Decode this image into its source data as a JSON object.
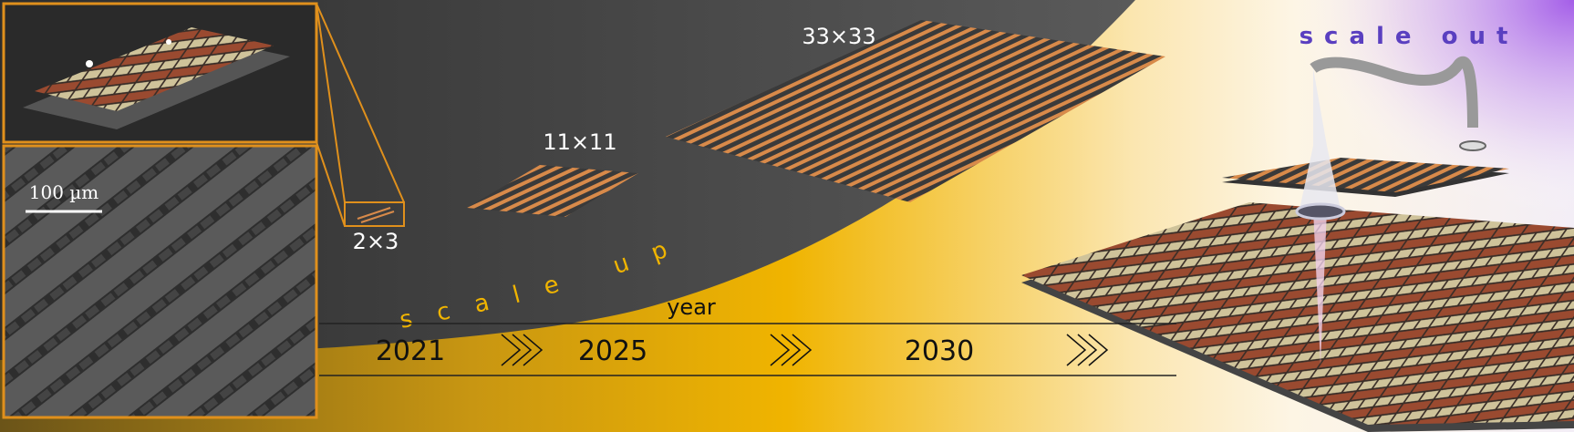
{
  "panels": {
    "scale_bar": "100 µm"
  },
  "arrays": [
    {
      "label": "2×3"
    },
    {
      "label": "11×11"
    },
    {
      "label": "33×33"
    }
  ],
  "scale_up": "scale up",
  "scale_out": "scale out",
  "timeline": {
    "axis_label": "year",
    "years": [
      "2021",
      "2025",
      "2030"
    ]
  }
}
